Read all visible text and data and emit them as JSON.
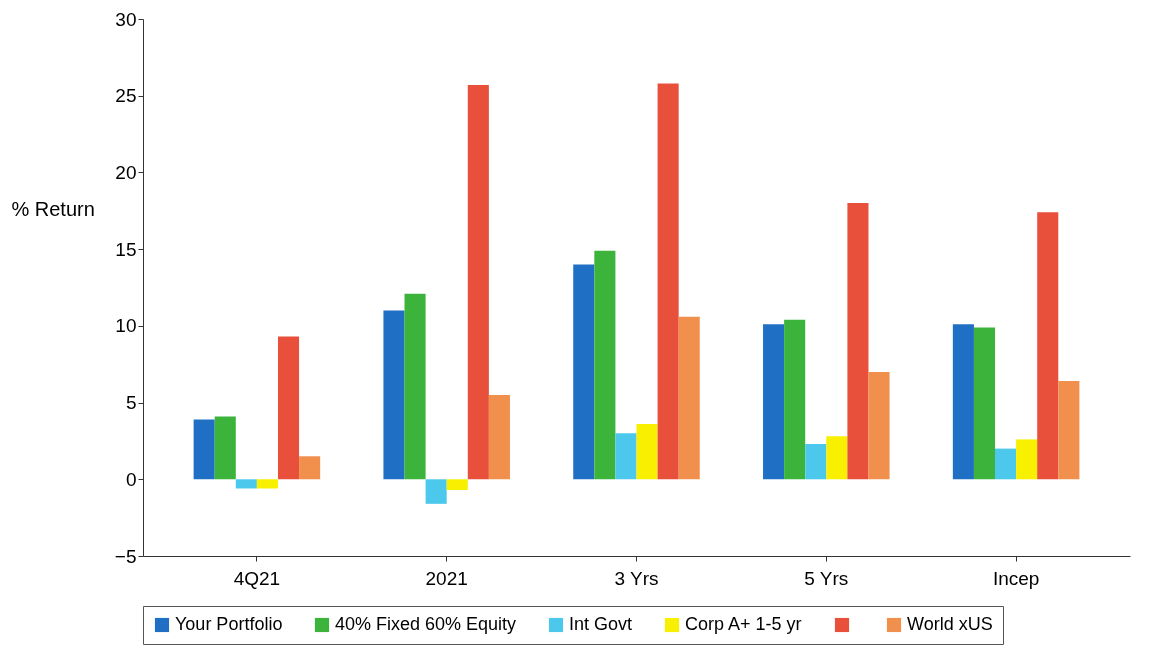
{
  "chart_data": {
    "type": "bar",
    "ylabel": "% Return",
    "categories": [
      "4Q21",
      "2021",
      "3 Yrs",
      "5 Yrs",
      "Incep"
    ],
    "series": [
      {
        "name": "Your Portfolio",
        "color": "#1f6fc4",
        "values": [
          3.9,
          11.0,
          14.0,
          10.1,
          10.1
        ]
      },
      {
        "name": "40% Fixed 60% Equity",
        "color": "#3cb43c",
        "values": [
          4.1,
          12.1,
          14.9,
          10.4,
          9.9
        ]
      },
      {
        "name": "Int Govt",
        "color": "#4cc8ec",
        "values": [
          -0.6,
          -1.6,
          3.0,
          2.3,
          2.0
        ]
      },
      {
        "name": "Corp A+ 1-5 yr",
        "color": "#f8f000",
        "values": [
          -0.6,
          -0.7,
          3.6,
          2.8,
          2.6
        ]
      },
      {
        "color": "#e8503c",
        "values": [
          9.3,
          25.7,
          25.8,
          18.0,
          17.4
        ]
      },
      {
        "name": "World xUS",
        "color": "#f0904c",
        "values": [
          1.5,
          5.5,
          10.6,
          7.0,
          6.4
        ]
      }
    ],
    "ylim": [
      -5,
      30
    ],
    "yticks": [
      -5,
      0,
      5,
      10,
      15,
      20,
      25,
      30
    ],
    "grid": false,
    "legend": "bottom"
  }
}
